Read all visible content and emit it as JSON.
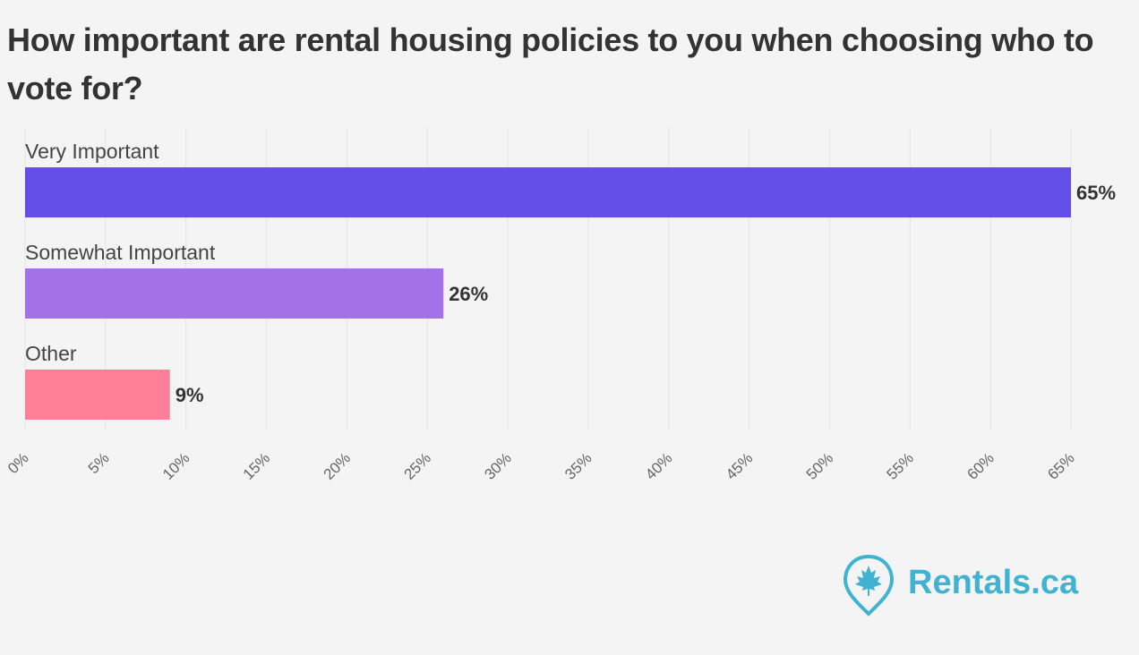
{
  "chart_data": {
    "type": "bar",
    "orientation": "horizontal",
    "title": "How important are rental housing policies to you when choosing who to vote for?",
    "categories": [
      "Very Important",
      "Somewhat Important",
      "Other"
    ],
    "values": [
      65,
      26,
      9
    ],
    "value_labels": [
      "65%",
      "26%",
      "9%"
    ],
    "colors": [
      "#634fe8",
      "#a571e8",
      "#ff7f98"
    ],
    "x_ticks": [
      "0%",
      "5%",
      "10%",
      "15%",
      "20%",
      "25%",
      "30%",
      "35%",
      "40%",
      "45%",
      "50%",
      "55%",
      "60%",
      "65%"
    ],
    "xlim": [
      0,
      65
    ],
    "grid": true
  },
  "brand": {
    "name": "Rentals.ca",
    "icon": "maple-leaf-pin-icon",
    "color": "#3fb3d1"
  }
}
